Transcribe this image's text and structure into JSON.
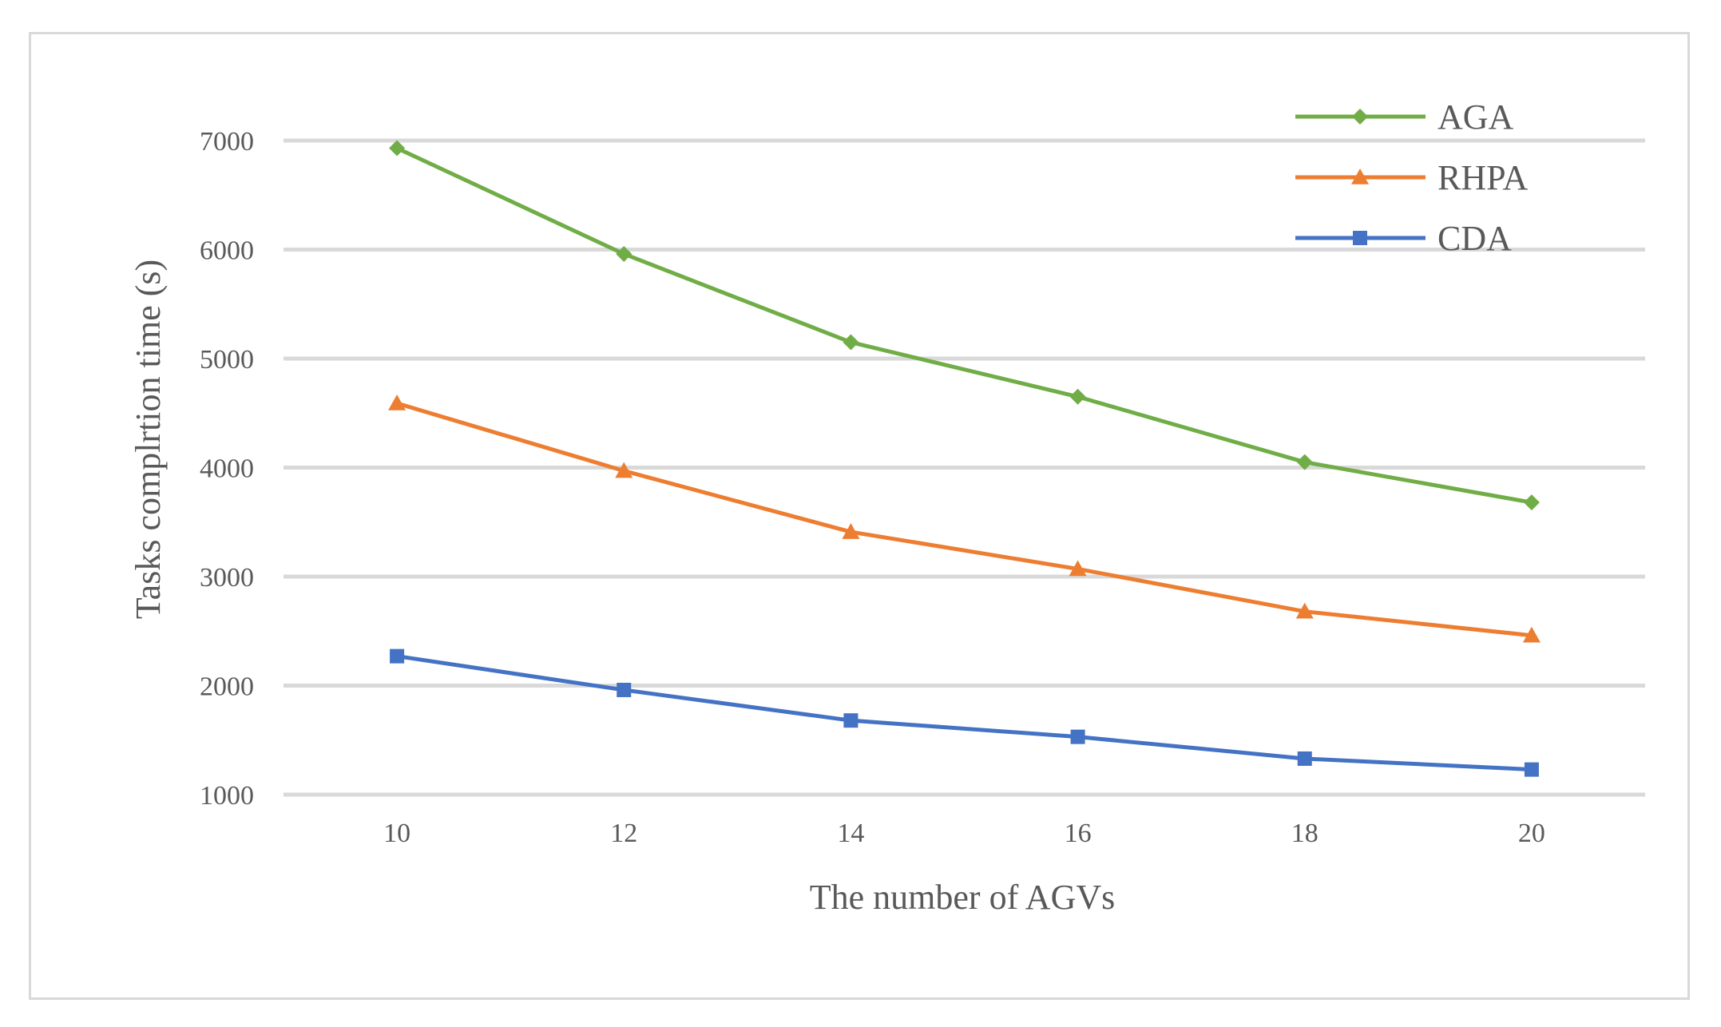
{
  "chart_data": {
    "type": "line",
    "title": "",
    "xlabel": "The number of AGVs",
    "ylabel": "Tasks complrtion time (s)",
    "categories": [
      "10",
      "12",
      "14",
      "16",
      "18",
      "20"
    ],
    "y_ticks": [
      "1000",
      "2000",
      "3000",
      "4000",
      "5000",
      "6000",
      "7000"
    ],
    "ylim": [
      1000,
      7000
    ],
    "grid": true,
    "legend_position": "top-right",
    "series": [
      {
        "name": "AGA",
        "marker": "diamond",
        "color": "#70ad47",
        "values": [
          6930,
          5960,
          5150,
          4650,
          4050,
          3680
        ]
      },
      {
        "name": "RHPA",
        "marker": "triangle",
        "color": "#ed7d31",
        "values": [
          4590,
          3970,
          3410,
          3070,
          2680,
          2460
        ]
      },
      {
        "name": "CDA",
        "marker": "square",
        "color": "#4472c4",
        "values": [
          2270,
          1960,
          1680,
          1530,
          1330,
          1230
        ]
      }
    ]
  }
}
